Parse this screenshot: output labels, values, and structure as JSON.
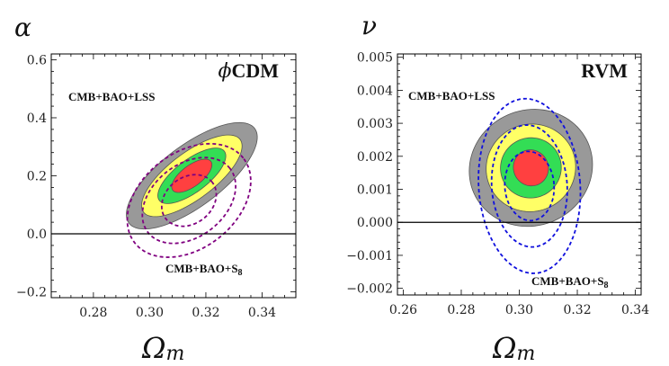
{
  "chart_data": [
    {
      "type": "contour",
      "panel": "left",
      "model": "ϕCDM",
      "model_prefix": "ϕ",
      "model_suffix": "CDM",
      "xlabel": "Ω_m",
      "xlabel_base": "Ω",
      "xlabel_sub": "m",
      "ylabel": "α",
      "xlim": [
        0.265,
        0.352
      ],
      "ylim": [
        -0.22,
        0.62
      ],
      "xticks": [
        0.28,
        0.3,
        0.32,
        0.34
      ],
      "xtick_labels": [
        "0.28",
        "0.30",
        "0.32",
        "0.34"
      ],
      "yticks": [
        -0.2,
        0.0,
        0.2,
        0.4,
        0.6
      ],
      "ytick_labels": [
        "−0.2",
        "0.0",
        "0.2",
        "0.4",
        "0.6"
      ],
      "hline": 0.0,
      "labels": {
        "top": "CMB+BAO+LSS",
        "bottom_main": "CMB+BAO+S",
        "bottom_sub": "8"
      },
      "filled": {
        "datasets": "CMB+BAO+LSS",
        "center": [
          0.315,
          0.2
        ],
        "angle_deg": 37,
        "levels": [
          {
            "name": "4sigma",
            "color": "#999999",
            "rx": 0.028,
            "ry": 0.105
          },
          {
            "name": "3sigma",
            "color": "#ffff66",
            "rx": 0.0215,
            "ry": 0.08
          },
          {
            "name": "2sigma",
            "color": "#33dd55",
            "rx": 0.0145,
            "ry": 0.056
          },
          {
            "name": "1sigma",
            "color": "#ff4040",
            "rx": 0.0085,
            "ry": 0.036
          }
        ]
      },
      "dashed": {
        "datasets": "CMB+BAO+S8",
        "color": "#800080",
        "center": [
          0.314,
          0.115
        ],
        "angle_deg": 38,
        "levels": [
          {
            "rx": 0.0105,
            "ry": 0.08
          },
          {
            "rx": 0.0185,
            "ry": 0.125
          },
          {
            "rx": 0.0245,
            "ry": 0.165
          }
        ]
      }
    },
    {
      "type": "contour",
      "panel": "right",
      "model": "RVM",
      "model_prefix": "",
      "model_suffix": "RVM",
      "xlabel": "Ω_m",
      "xlabel_base": "Ω",
      "xlabel_sub": "m",
      "ylabel": "ν",
      "xlim": [
        0.258,
        0.342
      ],
      "ylim": [
        -0.0022,
        0.0051
      ],
      "xticks": [
        0.26,
        0.28,
        0.3,
        0.32,
        0.34
      ],
      "xtick_labels": [
        "0.26",
        "0.28",
        "0.30",
        "0.32",
        "0.34"
      ],
      "yticks": [
        -0.002,
        -0.001,
        0.0,
        0.001,
        0.002,
        0.003,
        0.004,
        0.005
      ],
      "ytick_labels": [
        "−0.002",
        "−0.001",
        "0.000",
        "0.001",
        "0.002",
        "0.003",
        "0.004",
        "0.005"
      ],
      "hline": 0.0,
      "labels": {
        "top": "CMB+BAO+LSS",
        "bottom_main": "CMB+BAO+S",
        "bottom_sub": "8"
      },
      "filled": {
        "datasets": "CMB+BAO+LSS",
        "center": [
          0.304,
          0.00165
        ],
        "angle_deg": 24,
        "levels": [
          {
            "name": "4sigma",
            "color": "#999999",
            "rx": 0.0215,
            "ry": 0.00175
          },
          {
            "name": "3sigma",
            "color": "#ffff66",
            "rx": 0.0155,
            "ry": 0.00132
          },
          {
            "name": "2sigma",
            "color": "#33dd55",
            "rx": 0.0105,
            "ry": 0.00091
          },
          {
            "name": "1sigma",
            "color": "#ff4040",
            "rx": 0.006,
            "ry": 0.00055
          }
        ]
      },
      "dashed": {
        "datasets": "CMB+BAO+S8",
        "color": "#1010dd",
        "center": [
          0.3035,
          0.0011
        ],
        "angle_deg": 4,
        "levels": [
          {
            "rx": 0.0085,
            "ry": 0.00105
          },
          {
            "rx": 0.013,
            "ry": 0.00185
          },
          {
            "rx": 0.0175,
            "ry": 0.00265
          }
        ]
      }
    }
  ]
}
